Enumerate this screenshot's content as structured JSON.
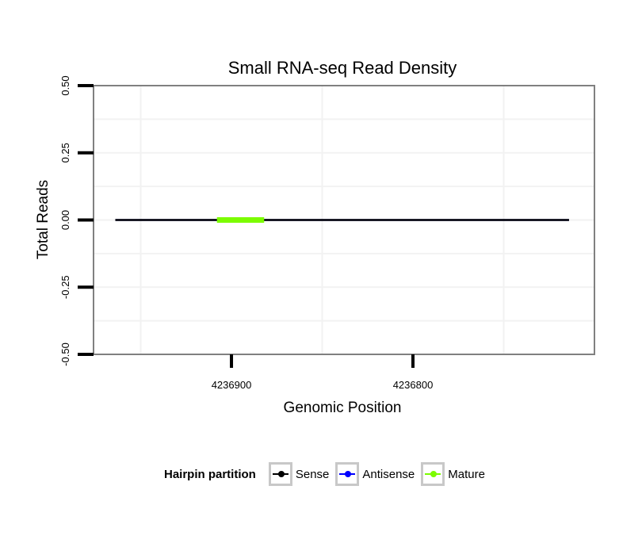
{
  "chart_data": {
    "type": "line",
    "title": "Small RNA-seq Read Density",
    "xlabel": "Genomic Position",
    "ylabel": "Total Reads",
    "x_reversed": true,
    "xlim": [
      4236976,
      4236700
    ],
    "ylim": [
      -0.5,
      0.5
    ],
    "y_ticks": [
      {
        "value": -0.5,
        "label": "-0.50"
      },
      {
        "value": -0.25,
        "label": "-0.25"
      },
      {
        "value": 0,
        "label": "0.00"
      },
      {
        "value": 0.25,
        "label": "0.25"
      },
      {
        "value": 0.5,
        "label": "0.50"
      }
    ],
    "x_ticks": [
      {
        "value": 4236900,
        "label": "4236900"
      },
      {
        "value": 4236800,
        "label": "4236800"
      }
    ],
    "series": [
      {
        "name": "Sense",
        "color": "#000000",
        "x": [
          4236964,
          4236714
        ],
        "y": [
          0,
          0
        ]
      },
      {
        "name": "Antisense",
        "color": "#0000ff",
        "x": [
          4236964,
          4236714
        ],
        "y": [
          0,
          0
        ]
      },
      {
        "name": "Mature",
        "color": "#7cfc00",
        "x": [
          4236908,
          4236882
        ],
        "y": [
          0,
          0
        ]
      }
    ],
    "legend": {
      "title": "Hairpin partition",
      "position": "bottom",
      "items": [
        {
          "label": "Sense",
          "color": "#000000"
        },
        {
          "label": "Antisense",
          "color": "#0000ff"
        },
        {
          "label": "Mature",
          "color": "#7cfc00"
        }
      ]
    }
  }
}
